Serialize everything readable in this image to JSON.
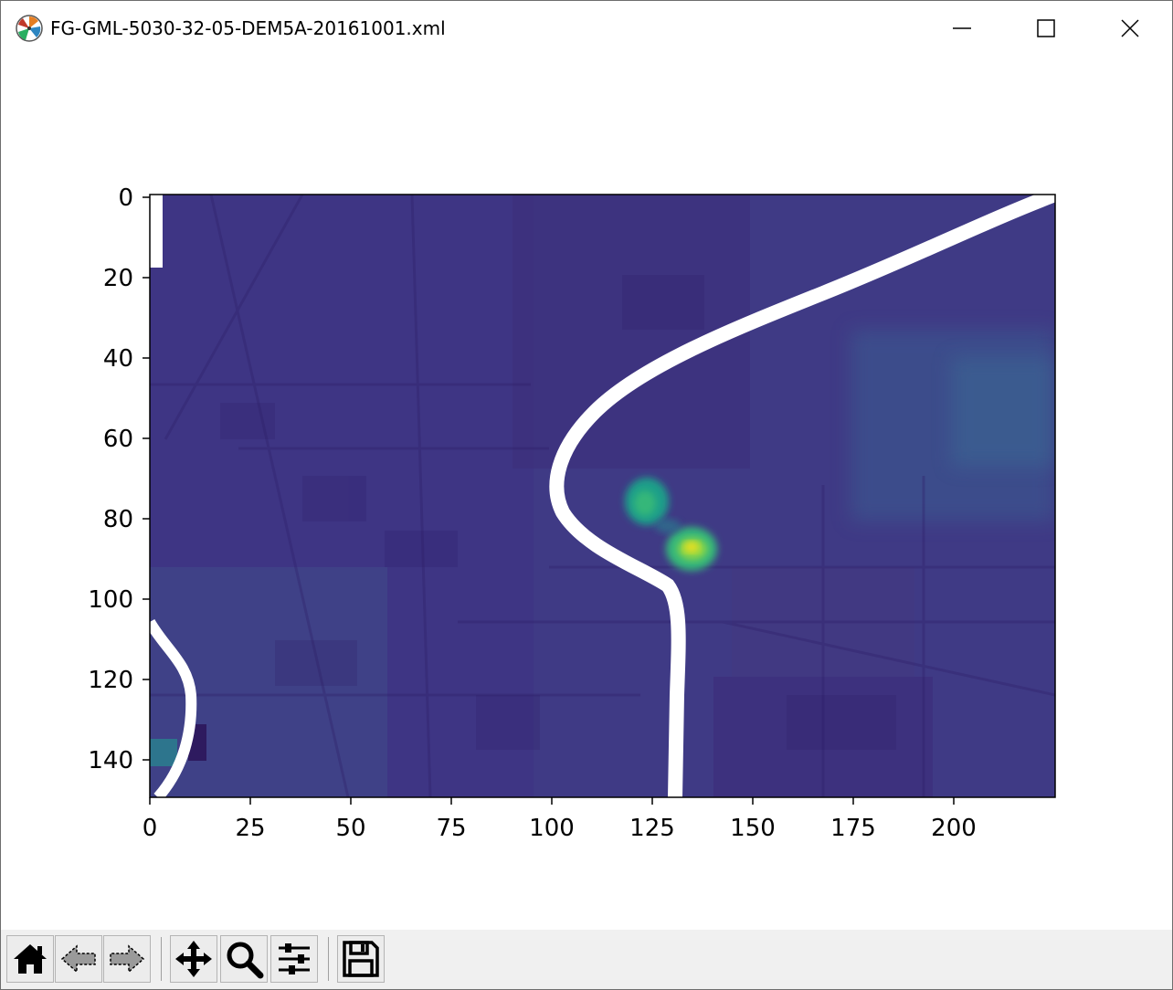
{
  "window": {
    "title": "FG-GML-5030-32-05-DEM5A-20161001.xml",
    "controls": [
      "minimize-icon",
      "maximize-icon",
      "close-icon"
    ]
  },
  "colors": {
    "cmap": "viridis",
    "nodata": "#ffffff",
    "background": "#3f3a85",
    "peak": "#e6df22"
  },
  "chart_data": {
    "type": "heatmap",
    "title": "",
    "xlabel": "",
    "ylabel": "",
    "xlim": [
      0,
      225
    ],
    "ylim": [
      150,
      0
    ],
    "xticks": [
      0,
      25,
      50,
      75,
      100,
      125,
      150,
      175,
      200
    ],
    "yticks": [
      0,
      20,
      40,
      60,
      80,
      100,
      120,
      140
    ],
    "colormap": "viridis",
    "grid": false,
    "legend": "none"
  },
  "toolbar": {
    "buttons": [
      {
        "icon": "home-icon",
        "label": "Home"
      },
      {
        "icon": "back-arrow-icon",
        "label": "Back"
      },
      {
        "icon": "forward-arrow-icon",
        "label": "Forward"
      },
      {
        "icon": "pan-icon",
        "label": "Pan"
      },
      {
        "icon": "zoom-icon",
        "label": "Zoom"
      },
      {
        "icon": "subplots-icon",
        "label": "Subplots"
      },
      {
        "icon": "save-icon",
        "label": "Save"
      }
    ]
  }
}
